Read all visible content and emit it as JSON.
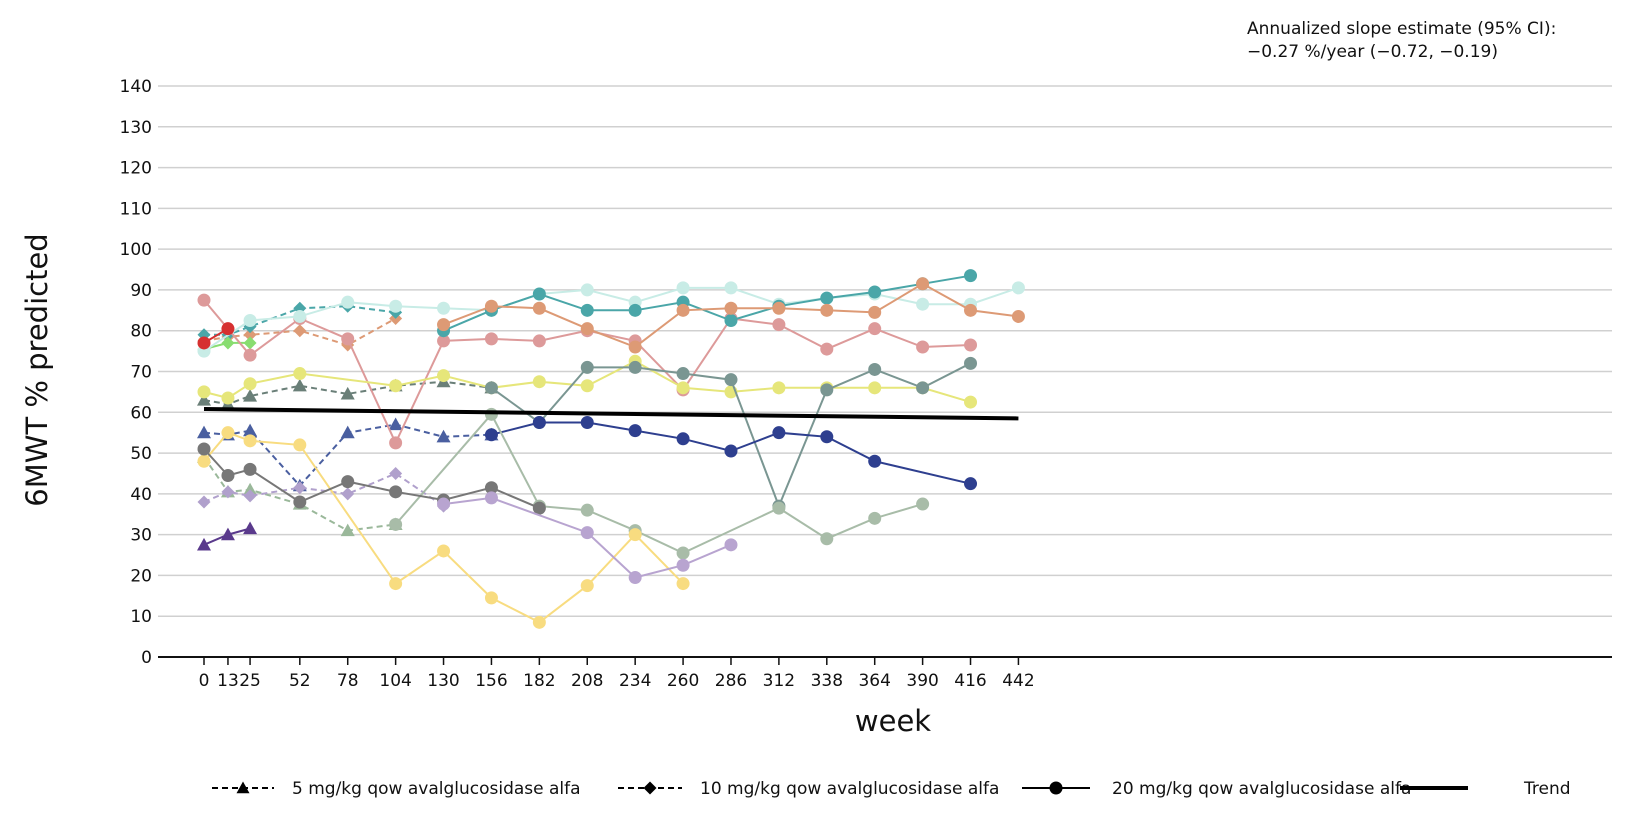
{
  "annotation": {
    "line1": "Annualized slope estimate (95% CI):",
    "line2": "−0.27 %/year (−0.72, −0.19)"
  },
  "chart_data": {
    "type": "line",
    "xlabel": "week",
    "ylabel": "6MWT % predicted",
    "x_ticks": [
      0,
      13,
      25,
      52,
      78,
      104,
      130,
      156,
      182,
      208,
      234,
      260,
      286,
      312,
      338,
      364,
      390,
      416,
      442
    ],
    "ylim": [
      0,
      140
    ],
    "y_ticks": [
      0,
      10,
      20,
      30,
      40,
      50,
      60,
      70,
      80,
      90,
      100,
      110,
      120,
      130,
      140
    ],
    "grid": "horizontal",
    "legend_position": "bottom",
    "legend": [
      {
        "label": "5 mg/kg qow avalglucosidase alfa",
        "style": "dashed",
        "marker": "triangle"
      },
      {
        "label": "10 mg/kg qow avalglucosidase alfa",
        "style": "dashed",
        "marker": "diamond"
      },
      {
        "label": "20 mg/kg qow avalglucosidase alfa",
        "style": "solid",
        "marker": "circle"
      },
      {
        "label": "Trend",
        "style": "trend",
        "marker": "none"
      }
    ],
    "trend": {
      "points": [
        [
          0,
          60.8
        ],
        [
          442,
          58.5
        ]
      ],
      "color": "#000000"
    },
    "series": [
      {
        "dose": "5",
        "style": "dashed",
        "marker": "triangle",
        "color": "#4a5fa0",
        "points": [
          [
            0,
            55
          ],
          [
            13,
            54.5
          ],
          [
            25,
            55.5
          ],
          [
            52,
            42
          ],
          [
            78,
            55
          ],
          [
            104,
            57
          ],
          [
            130,
            54
          ],
          [
            156,
            54.5
          ]
        ]
      },
      {
        "dose": "5",
        "style": "dashed",
        "marker": "triangle",
        "color": "#6a7f78",
        "points": [
          [
            0,
            63
          ],
          [
            13,
            62
          ],
          [
            25,
            64
          ],
          [
            52,
            66.5
          ],
          [
            78,
            64.5
          ],
          [
            104,
            66.5
          ],
          [
            130,
            67.5
          ],
          [
            156,
            66
          ]
        ]
      },
      {
        "dose": "5",
        "style": "dashed",
        "marker": "triangle",
        "color": "#9ab89a",
        "points": [
          [
            0,
            49
          ],
          [
            13,
            40.5
          ],
          [
            25,
            41
          ],
          [
            52,
            37.5
          ],
          [
            78,
            31
          ],
          [
            104,
            32.5
          ]
        ]
      },
      {
        "dose": "5",
        "style": "solid",
        "marker": "triangle",
        "color": "#5a3a8c",
        "points": [
          [
            0,
            27.5
          ],
          [
            13,
            30
          ],
          [
            25,
            31.5
          ]
        ]
      },
      {
        "dose": "10",
        "style": "dashed",
        "marker": "diamond",
        "color": "#dd9a75",
        "points": [
          [
            0,
            77.5
          ],
          [
            13,
            78.5
          ],
          [
            25,
            79
          ],
          [
            52,
            80
          ],
          [
            78,
            76.5
          ],
          [
            104,
            83
          ]
        ]
      },
      {
        "dose": "10",
        "style": "dashed",
        "marker": "diamond",
        "color": "#4aa6a8",
        "points": [
          [
            0,
            79
          ],
          [
            13,
            79
          ],
          [
            25,
            81
          ],
          [
            52,
            85.5
          ],
          [
            78,
            86
          ],
          [
            104,
            84.5
          ]
        ]
      },
      {
        "dose": "10",
        "style": "dashed",
        "marker": "diamond",
        "color": "#b0a0cc",
        "points": [
          [
            0,
            38
          ],
          [
            13,
            40.5
          ],
          [
            25,
            39.5
          ],
          [
            52,
            41.5
          ],
          [
            78,
            40
          ],
          [
            104,
            45
          ],
          [
            130,
            37
          ]
        ]
      },
      {
        "dose": "10",
        "style": "solid",
        "marker": "diamond",
        "color": "#88dd70",
        "points": [
          [
            0,
            75.5
          ],
          [
            13,
            77
          ],
          [
            25,
            77
          ]
        ]
      },
      {
        "dose": "20",
        "style": "solid",
        "marker": "circle",
        "color": "#dd9a9a",
        "points": [
          [
            0,
            87.5
          ],
          [
            25,
            74
          ],
          [
            52,
            83
          ],
          [
            78,
            78
          ],
          [
            104,
            52.5
          ],
          [
            130,
            77.5
          ],
          [
            156,
            78
          ],
          [
            182,
            77.5
          ],
          [
            208,
            80
          ],
          [
            234,
            77.5
          ],
          [
            260,
            65.5
          ],
          [
            286,
            83
          ],
          [
            312,
            81.5
          ],
          [
            338,
            75.5
          ],
          [
            364,
            80.5
          ],
          [
            390,
            76
          ],
          [
            416,
            76.5
          ]
        ]
      },
      {
        "dose": "20",
        "style": "solid",
        "marker": "circle",
        "color": "#c8ece6",
        "points": [
          [
            0,
            75
          ],
          [
            25,
            82.5
          ],
          [
            52,
            83.5
          ],
          [
            78,
            87
          ],
          [
            104,
            86
          ],
          [
            130,
            85.5
          ],
          [
            156,
            85
          ],
          [
            182,
            89
          ],
          [
            208,
            90
          ],
          [
            234,
            87
          ],
          [
            260,
            90.5
          ],
          [
            286,
            90.5
          ],
          [
            312,
            86.5
          ],
          [
            338,
            88
          ],
          [
            364,
            89
          ],
          [
            390,
            86.5
          ],
          [
            416,
            86.5
          ],
          [
            442,
            90.5
          ]
        ]
      },
      {
        "dose": "20",
        "style": "solid",
        "marker": "circle",
        "color": "#4aa6a8",
        "points": [
          [
            130,
            80
          ],
          [
            156,
            85
          ],
          [
            182,
            89
          ],
          [
            208,
            85
          ],
          [
            234,
            85
          ],
          [
            260,
            87
          ],
          [
            286,
            82.5
          ],
          [
            312,
            86
          ],
          [
            338,
            88
          ],
          [
            364,
            89.5
          ],
          [
            390,
            91.5
          ],
          [
            416,
            93.5
          ]
        ]
      },
      {
        "dose": "20",
        "style": "solid",
        "marker": "circle",
        "color": "#dd9a75",
        "points": [
          [
            130,
            81.5
          ],
          [
            156,
            86
          ],
          [
            182,
            85.5
          ],
          [
            208,
            80.5
          ],
          [
            234,
            76
          ],
          [
            260,
            85
          ],
          [
            286,
            85.5
          ],
          [
            312,
            85.5
          ],
          [
            338,
            85
          ],
          [
            364,
            84.5
          ],
          [
            390,
            91.5
          ],
          [
            416,
            85
          ],
          [
            442,
            83.5
          ]
        ]
      },
      {
        "dose": "20",
        "style": "solid",
        "marker": "circle",
        "color": "#e6e67a",
        "points": [
          [
            0,
            65
          ],
          [
            13,
            63.5
          ],
          [
            25,
            67
          ],
          [
            52,
            69.5
          ],
          [
            104,
            66.5
          ],
          [
            130,
            69
          ],
          [
            156,
            66
          ],
          [
            182,
            67.5
          ],
          [
            208,
            66.5
          ],
          [
            234,
            72.5
          ],
          [
            260,
            66
          ],
          [
            286,
            65
          ],
          [
            312,
            66
          ],
          [
            338,
            66
          ],
          [
            364,
            66
          ],
          [
            390,
            66
          ],
          [
            416,
            62.5
          ]
        ]
      },
      {
        "dose": "20",
        "style": "solid",
        "marker": "circle",
        "color": "#7a9692",
        "points": [
          [
            156,
            66
          ],
          [
            182,
            57.5
          ],
          [
            208,
            71
          ],
          [
            234,
            71
          ],
          [
            260,
            69.5
          ],
          [
            286,
            68
          ],
          [
            312,
            37
          ],
          [
            338,
            65.5
          ],
          [
            364,
            70.5
          ],
          [
            390,
            66
          ],
          [
            416,
            72
          ]
        ]
      },
      {
        "dose": "20",
        "style": "solid",
        "marker": "circle",
        "color": "#2e3f8f",
        "points": [
          [
            156,
            54.5
          ],
          [
            182,
            57.5
          ],
          [
            208,
            57.5
          ],
          [
            234,
            55.5
          ],
          [
            260,
            53.5
          ],
          [
            286,
            50.5
          ],
          [
            312,
            55
          ],
          [
            338,
            54
          ],
          [
            364,
            48
          ],
          [
            416,
            42.5
          ]
        ]
      },
      {
        "dose": "20",
        "style": "solid",
        "marker": "circle",
        "color": "#a8bca8",
        "points": [
          [
            104,
            32.5
          ],
          [
            156,
            59.5
          ],
          [
            182,
            37
          ],
          [
            208,
            36
          ],
          [
            234,
            31
          ],
          [
            260,
            25.5
          ],
          [
            312,
            36.5
          ],
          [
            338,
            29
          ],
          [
            364,
            34
          ],
          [
            390,
            37.5
          ]
        ]
      },
      {
        "dose": "20",
        "style": "solid",
        "marker": "circle",
        "color": "#f8dc80",
        "points": [
          [
            0,
            48
          ],
          [
            13,
            55
          ],
          [
            25,
            53
          ],
          [
            52,
            52
          ],
          [
            104,
            18
          ],
          [
            130,
            26
          ],
          [
            156,
            14.5
          ],
          [
            182,
            8.5
          ],
          [
            208,
            17.5
          ],
          [
            234,
            30
          ],
          [
            260,
            18
          ]
        ]
      },
      {
        "dose": "20",
        "style": "solid",
        "marker": "circle",
        "color": "#777777",
        "points": [
          [
            0,
            51
          ],
          [
            13,
            44.5
          ],
          [
            25,
            46
          ],
          [
            52,
            38
          ],
          [
            78,
            43
          ],
          [
            104,
            40.5
          ],
          [
            130,
            38.5
          ],
          [
            156,
            41.5
          ],
          [
            182,
            36.5
          ]
        ]
      },
      {
        "dose": "20",
        "style": "solid",
        "marker": "circle",
        "color": "#b8a4d0",
        "points": [
          [
            130,
            37.5
          ],
          [
            156,
            39
          ],
          [
            208,
            30.5
          ],
          [
            234,
            19.5
          ],
          [
            260,
            22.5
          ],
          [
            286,
            27.5
          ]
        ]
      },
      {
        "dose": "20",
        "style": "solid",
        "marker": "circle",
        "color": "#d63030",
        "points": [
          [
            0,
            77
          ],
          [
            13,
            80.5
          ]
        ]
      }
    ]
  }
}
